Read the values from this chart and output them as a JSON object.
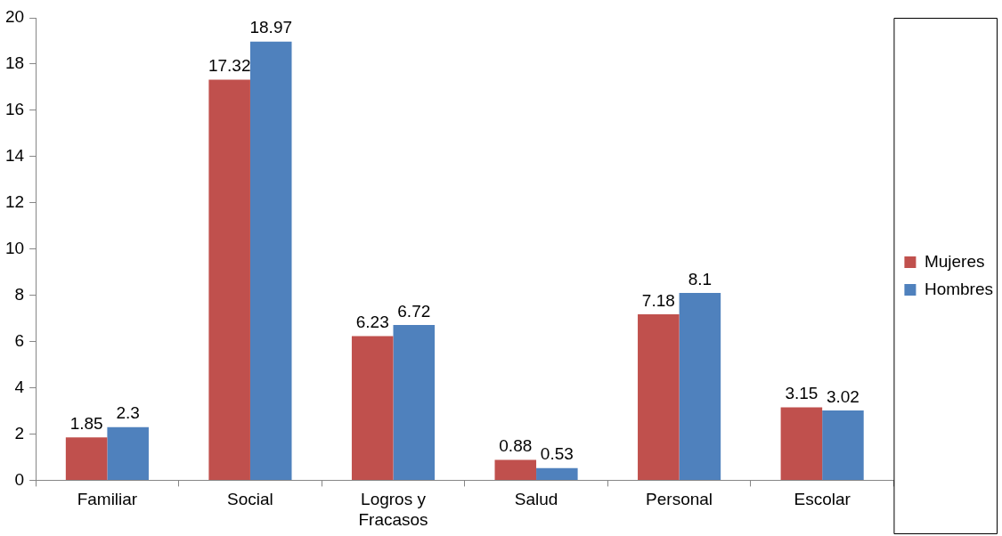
{
  "chart_data": {
    "type": "bar",
    "categories": [
      "Familiar",
      "Social",
      "Logros y Fracasos",
      "Salud",
      "Personal",
      "Escolar"
    ],
    "series": [
      {
        "name": "Mujeres",
        "color": "#c0504d",
        "values": [
          1.85,
          17.32,
          6.23,
          0.88,
          7.18,
          3.15
        ]
      },
      {
        "name": "Hombres",
        "color": "#4f81bd",
        "values": [
          2.3,
          18.97,
          6.72,
          0.53,
          8.1,
          3.02
        ]
      }
    ],
    "ylim": [
      0,
      20
    ],
    "yticks": [
      0,
      2,
      4,
      6,
      8,
      10,
      12,
      14,
      16,
      18,
      20
    ],
    "grid": false,
    "legend": "right",
    "data_labels": true
  }
}
